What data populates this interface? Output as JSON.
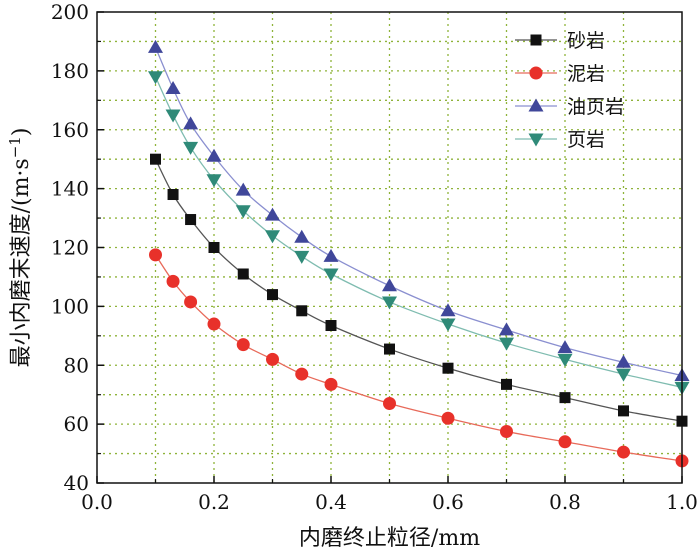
{
  "chart_data": {
    "type": "line",
    "xlabel": "内磨终止粒径/mm",
    "ylabel_main": "最小内磨末速度/(m·s",
    "ylabel_exp": "−1",
    "ylabel_close": ")",
    "xlim": [
      0.0,
      1.0
    ],
    "ylim": [
      40,
      200
    ],
    "xticks": [
      0.0,
      0.2,
      0.4,
      0.6,
      0.8,
      1.0
    ],
    "xtick_labels": [
      "0.0",
      "0.2",
      "0.4",
      "0.6",
      "0.8",
      "1.0"
    ],
    "yticks": [
      40,
      60,
      80,
      100,
      120,
      140,
      160,
      180,
      200
    ],
    "ytick_labels": [
      "40",
      "60",
      "80",
      "100",
      "120",
      "140",
      "160",
      "180",
      "200"
    ],
    "x_minor_ticks": [
      0.1,
      0.3,
      0.5,
      0.7,
      0.9
    ],
    "y_minor_ticks": [
      50,
      70,
      90,
      110,
      130,
      150,
      170,
      190
    ],
    "grid": "dotted",
    "legend_position": "top-right",
    "x": [
      0.1,
      0.13,
      0.16,
      0.2,
      0.25,
      0.3,
      0.35,
      0.4,
      0.5,
      0.6,
      0.7,
      0.8,
      0.9,
      1.0
    ],
    "series": [
      {
        "name": "砂岩",
        "marker": "square",
        "color": "#111111",
        "line_color": "#555555",
        "values": [
          150,
          138,
          129.5,
          120,
          111,
          104,
          98.5,
          93.5,
          85.5,
          79,
          73.5,
          69,
          64.5,
          61
        ]
      },
      {
        "name": "泥岩",
        "marker": "circle",
        "color": "#e8312a",
        "line_color": "#e86a5a",
        "values": [
          117.5,
          108.5,
          101.5,
          94,
          87,
          82,
          77,
          73.5,
          67,
          62,
          57.5,
          54,
          50.5,
          47.5
        ]
      },
      {
        "name": "油页岩",
        "marker": "triangle-up",
        "color": "#40479a",
        "line_color": "#8a8fd0",
        "values": [
          188,
          174,
          162,
          151,
          139.5,
          131,
          123.5,
          117,
          107,
          98.5,
          92,
          86,
          81,
          76.5
        ]
      },
      {
        "name": "页岩",
        "marker": "triangle-down",
        "color": "#2f8a78",
        "line_color": "#7fbcb0",
        "values": [
          178,
          165,
          154,
          143,
          132.5,
          124,
          117,
          111,
          101.5,
          94,
          87.5,
          82,
          77,
          72.5
        ]
      }
    ]
  }
}
